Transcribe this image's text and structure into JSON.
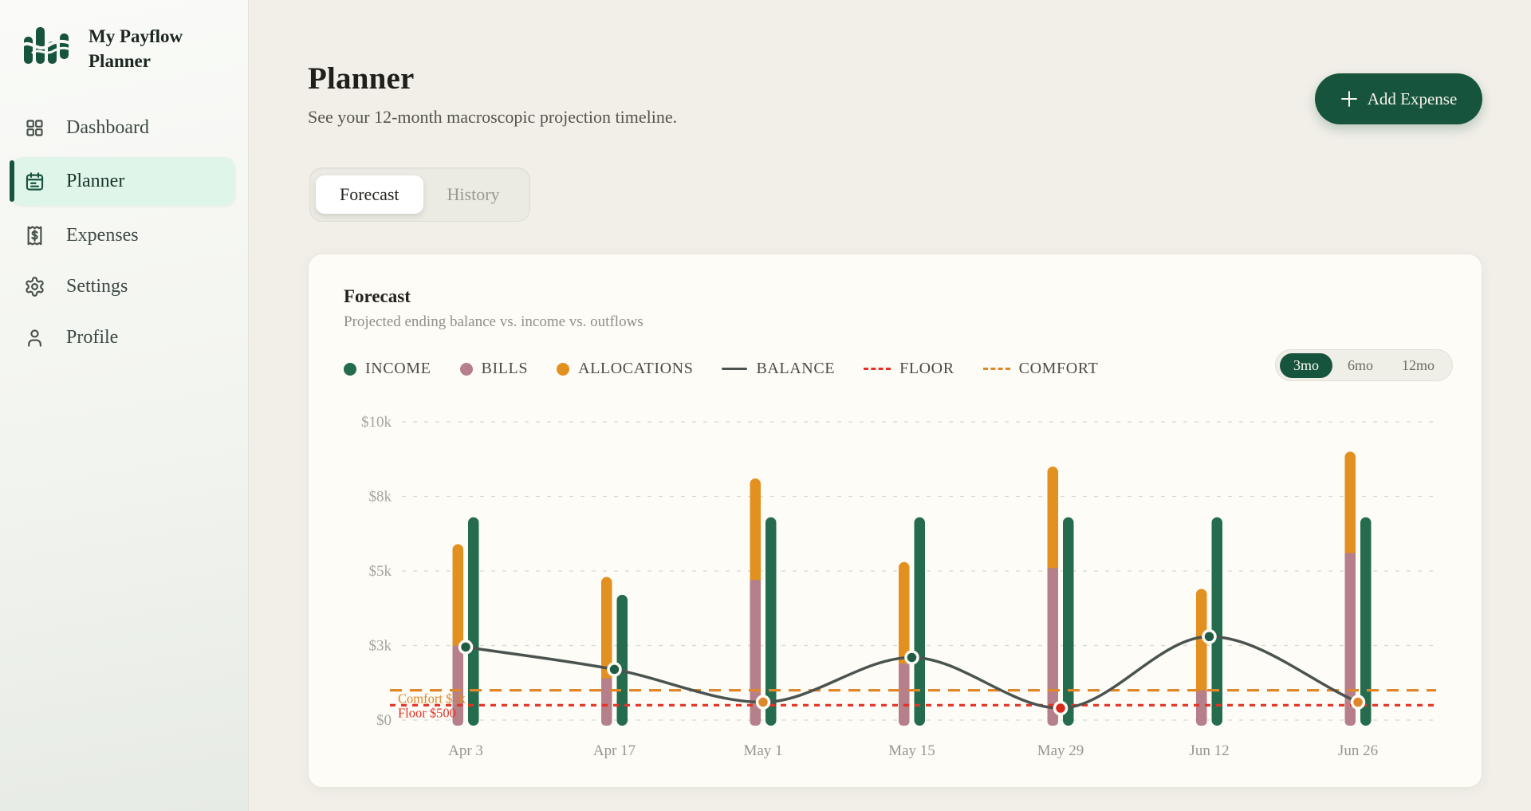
{
  "app": {
    "brand": "My Payflow Planner"
  },
  "sidebar": {
    "items": [
      {
        "label": "Dashboard",
        "active": false
      },
      {
        "label": "Planner",
        "active": true
      },
      {
        "label": "Expenses",
        "active": false
      },
      {
        "label": "Settings",
        "active": false
      },
      {
        "label": "Profile",
        "active": false
      }
    ]
  },
  "header": {
    "title": "Planner",
    "subtitle": "See your 12-month macroscopic projection timeline.",
    "add_expense": "Add Expense"
  },
  "view_tabs": [
    {
      "label": "Forecast",
      "active": true
    },
    {
      "label": "History",
      "active": false
    }
  ],
  "panel": {
    "title": "Forecast",
    "subtitle": "Projected ending balance vs. income vs. outflows"
  },
  "legend": {
    "items": [
      {
        "label": "INCOME",
        "swatch": "dot",
        "color": "#256c4e"
      },
      {
        "label": "BILLS",
        "swatch": "dot",
        "color": "#b5808a"
      },
      {
        "label": "ALLOCATIONS",
        "swatch": "dot",
        "color": "#e2901f"
      },
      {
        "label": "BALANCE",
        "swatch": "line",
        "color": "#4b5351"
      },
      {
        "label": "FLOOR",
        "swatch": "dash",
        "color": "#e23325"
      },
      {
        "label": "COMFORT",
        "swatch": "dash",
        "color": "#e0862b"
      }
    ]
  },
  "range": {
    "options": [
      {
        "label": "3mo",
        "active": true
      },
      {
        "label": "6mo",
        "active": false
      },
      {
        "label": "12mo",
        "active": false
      }
    ]
  },
  "colors": {
    "accent": "#17543e",
    "accent_light": "#e0f5ea",
    "page_bg": "#f1efe8",
    "card_bg": "#fdfcf6"
  },
  "chart_data": {
    "type": "bar",
    "title": "Forecast",
    "subtitle": "Projected ending balance vs. income vs. outflows",
    "categories": [
      "Apr 3",
      "Apr 17",
      "May 1",
      "May 15",
      "May 29",
      "Jun 12",
      "Jun 26"
    ],
    "series": [
      {
        "name": "INCOME",
        "type": "bar",
        "color": "#256c4e",
        "values": [
          6800,
          4200,
          6800,
          6800,
          6800,
          6800,
          6800
        ]
      },
      {
        "name": "BILLS",
        "type": "bar",
        "stack": "outflows",
        "color": "#b5808a",
        "values": [
          2500,
          1400,
          4700,
          1900,
          5100,
          1000,
          5600
        ]
      },
      {
        "name": "ALLOCATIONS",
        "type": "bar",
        "stack": "outflows",
        "color": "#e2901f",
        "values": [
          3400,
          3400,
          3400,
          3400,
          3400,
          3400,
          3400
        ]
      },
      {
        "name": "BALANCE",
        "type": "line",
        "color": "#4b5351",
        "values": [
          2450,
          1700,
          600,
          2100,
          400,
          2800,
          600
        ],
        "point_status": [
          "ok",
          "ok",
          "warning",
          "ok",
          "danger",
          "ok",
          "warning"
        ]
      }
    ],
    "status_colors": {
      "ok": "#1f5c44",
      "warning": "#e0862b",
      "danger": "#d9281c"
    },
    "reference_lines": [
      {
        "name": "COMFORT",
        "value": 1000,
        "label": "Comfort $1k",
        "color": "#e0862b",
        "dash": "15 10"
      },
      {
        "name": "FLOOR",
        "value": 500,
        "label": "Floor $500",
        "color": "#e23325",
        "dash": "7 7"
      }
    ],
    "y_ticks": [
      {
        "value": 0,
        "label": "$0"
      },
      {
        "value": 2500,
        "label": "$3k"
      },
      {
        "value": 5000,
        "label": "$5k"
      },
      {
        "value": 7500,
        "label": "$8k"
      },
      {
        "value": 10000,
        "label": "$10k"
      }
    ],
    "ylim": [
      0,
      10000
    ],
    "grid": true,
    "legend_position": "top"
  }
}
